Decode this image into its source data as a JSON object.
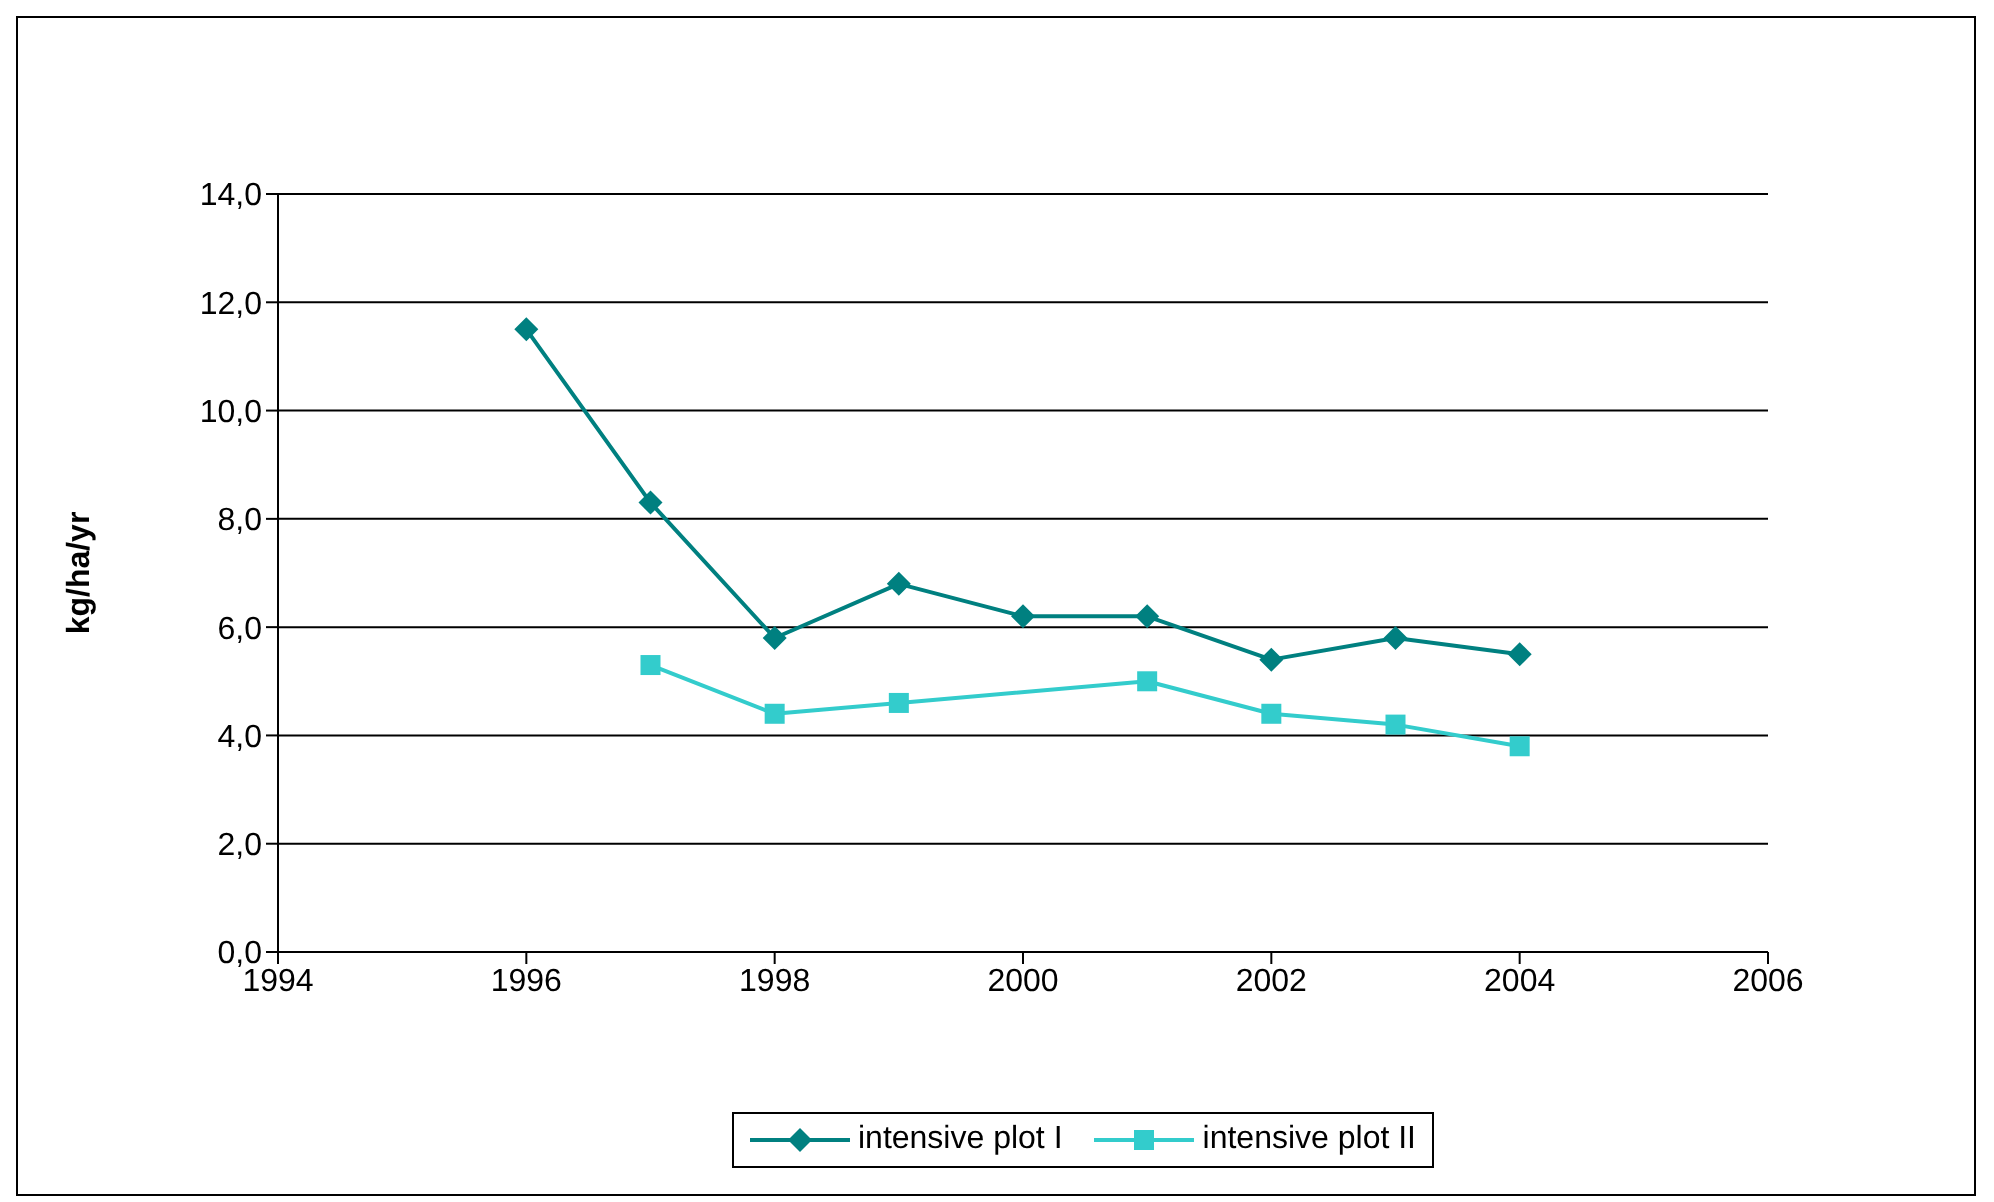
{
  "chart_data": {
    "type": "line",
    "ylabel": "kg/ha/yr",
    "xlim": [
      1994,
      2006
    ],
    "xticks": [
      1994,
      1996,
      1998,
      2000,
      2002,
      2004,
      2006
    ],
    "ylim": [
      0,
      14
    ],
    "yticks": [
      {
        "value": 0,
        "label": "0,0"
      },
      {
        "value": 2,
        "label": "2,0"
      },
      {
        "value": 4,
        "label": "4,0"
      },
      {
        "value": 6,
        "label": "6,0"
      },
      {
        "value": 8,
        "label": "8,0"
      },
      {
        "value": 10,
        "label": "10,0"
      },
      {
        "value": 12,
        "label": "12,0"
      },
      {
        "value": 14,
        "label": "14,0"
      }
    ],
    "grid": "y",
    "legend": "bottom",
    "series": [
      {
        "name": "intensive plot I",
        "color": "#008080",
        "marker": "diamond",
        "x": [
          1996,
          1997,
          1998,
          1999,
          2000,
          2001,
          2002,
          2003,
          2004
        ],
        "values": [
          11.5,
          8.3,
          5.8,
          6.8,
          6.2,
          6.2,
          5.4,
          5.8,
          5.5
        ]
      },
      {
        "name": "intensive plot II",
        "color": "#33cccc",
        "marker": "square",
        "x": [
          1997,
          1998,
          1999,
          2001,
          2002,
          2003,
          2004
        ],
        "values": [
          5.3,
          4.4,
          4.6,
          5.0,
          4.4,
          4.2,
          3.8
        ]
      }
    ]
  }
}
